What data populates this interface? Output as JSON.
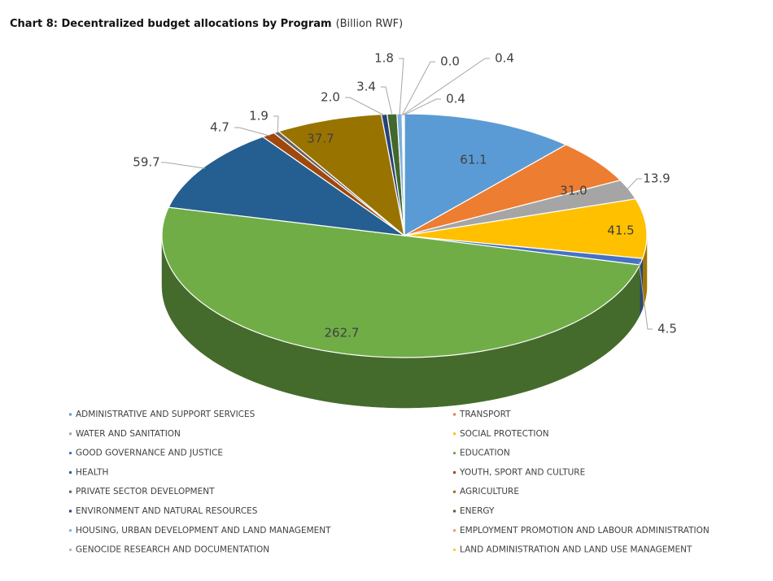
{
  "chart_data": {
    "type": "pie3d",
    "title": "Chart 8: Decentralized budget allocations by Program",
    "unit": "(Billion RWF)",
    "categories": [
      "ADMINISTRATIVE AND SUPPORT SERVICES",
      "TRANSPORT",
      "WATER AND SANITATION",
      "SOCIAL PROTECTION",
      "GOOD GOVERNANCE AND JUSTICE",
      "EDUCATION",
      "HEALTH",
      "YOUTH, SPORT AND CULTURE",
      "PRIVATE SECTOR DEVELOPMENT",
      "AGRICULTURE",
      "ENVIRONMENT AND NATURAL RESOURCES",
      "ENERGY",
      "HOUSING, URBAN DEVELOPMENT AND LAND MANAGEMENT",
      "EMPLOYMENT PROMOTION AND LABOUR ADMINISTRATION",
      "GENOCIDE RESEARCH AND DOCUMENTATION",
      "LAND ADMINISTRATION AND LAND USE MANAGEMENT"
    ],
    "values": [
      61.1,
      31.0,
      13.9,
      41.5,
      4.5,
      262.7,
      59.7,
      4.7,
      1.9,
      37.7,
      2.0,
      3.4,
      1.8,
      0.0,
      0.4,
      0.4
    ],
    "value_labels": [
      "61.1",
      "31.0",
      "13.9",
      "41.5",
      "4.5",
      "262.7",
      "59.7",
      "4.7",
      "1.9",
      "37.7",
      "2.0",
      "3.4",
      "1.8",
      "0.0",
      "0.4",
      "0.4"
    ],
    "colors": [
      "#5b9bd5",
      "#ed7d31",
      "#a5a5a5",
      "#ffc000",
      "#4472c4",
      "#70ad47",
      "#255e91",
      "#9e480e",
      "#636363",
      "#997300",
      "#264478",
      "#43682b",
      "#7cafdd",
      "#f1975a",
      "#b7b7b7",
      "#ffcd33"
    ]
  }
}
